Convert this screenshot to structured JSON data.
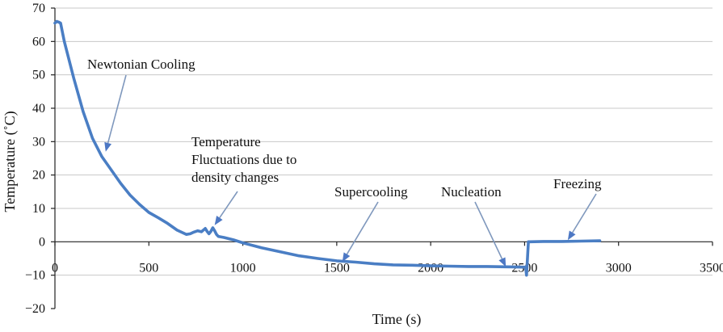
{
  "chart_data": {
    "type": "line",
    "xlabel": "Time (s)",
    "ylabel": "Temperature (˚C)",
    "xlim": [
      0,
      3500
    ],
    "ylim": [
      -20,
      70
    ],
    "xticks": [
      0,
      500,
      1000,
      1500,
      2000,
      2500,
      3000,
      3500
    ],
    "yticks": [
      -20,
      -10,
      0,
      10,
      20,
      30,
      40,
      50,
      60,
      70
    ],
    "grid": "horizontal",
    "series_color": "#4a7ec4",
    "series": [
      {
        "x": [
          0,
          10,
          20,
          30,
          50,
          100,
          150,
          200,
          250,
          300,
          350,
          400,
          450,
          500,
          550,
          600,
          650,
          700,
          720,
          740,
          760,
          780,
          800,
          810,
          820,
          830,
          840,
          850,
          860,
          870,
          880,
          900,
          950,
          1000,
          1100,
          1200,
          1300,
          1400,
          1500,
          1600,
          1700,
          1800,
          1900,
          2000,
          2100,
          2200,
          2300,
          2400,
          2490,
          2505,
          2510,
          2520,
          2530,
          2600,
          2700,
          2800,
          2900
        ],
        "y": [
          65.5,
          66,
          65.8,
          65.5,
          60,
          49,
          39,
          31,
          25.5,
          21.5,
          17.5,
          14,
          11.2,
          8.8,
          7.2,
          5.5,
          3.5,
          2.2,
          2.4,
          2.9,
          3.3,
          3.0,
          4.0,
          3.1,
          2.4,
          3.1,
          4.2,
          3.3,
          2.2,
          1.6,
          1.5,
          1.3,
          0.6,
          -0.3,
          -1.8,
          -3.0,
          -4.2,
          -5.0,
          -5.7,
          -6.1,
          -6.6,
          -6.9,
          -7.0,
          -7.2,
          -7.3,
          -7.4,
          -7.4,
          -7.5,
          -7.6,
          -7.6,
          -10.0,
          0.0,
          0.0,
          0.1,
          0.1,
          0.2,
          0.3
        ]
      }
    ],
    "annotations": [
      {
        "lines": [
          "Newtonian Cooling"
        ],
        "target": [
          270,
          27
        ]
      },
      {
        "lines": [
          "Temperature",
          "Fluctuations due to",
          "density changes"
        ],
        "target": [
          850,
          5
        ]
      },
      {
        "lines": [
          "Supercooling"
        ],
        "target": [
          1530,
          -6
        ]
      },
      {
        "lines": [
          "Nucleation"
        ],
        "target": [
          2400,
          -7.5
        ]
      },
      {
        "lines": [
          "Freezing"
        ],
        "target": [
          2730,
          0.5
        ]
      }
    ]
  }
}
